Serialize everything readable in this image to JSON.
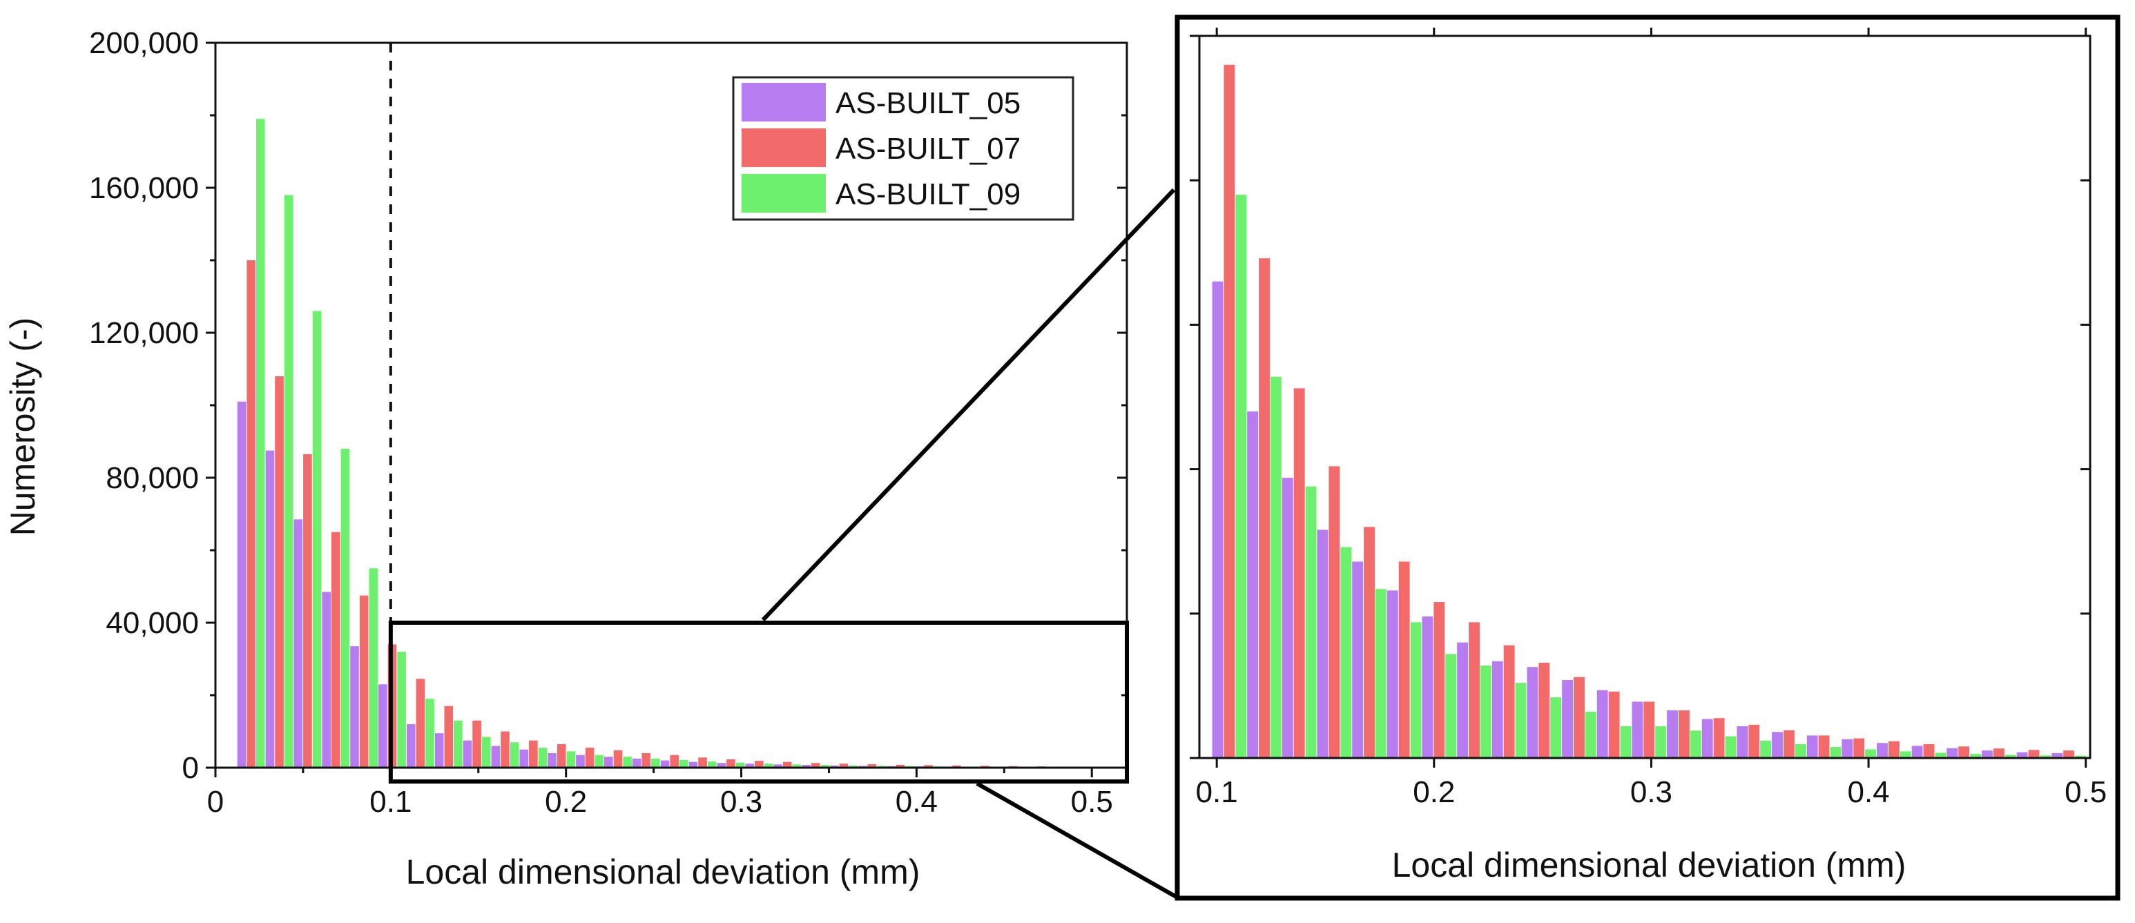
{
  "chart_data": [
    {
      "panel": "main",
      "type": "bar",
      "xlabel": "Local dimensional deviation (mm)",
      "ylabel": "Numerosity (-)",
      "xlim": [
        0,
        0.52
      ],
      "ylim": [
        0,
        200000
      ],
      "xticks": [
        0,
        0.1,
        0.2,
        0.3,
        0.4,
        0.5
      ],
      "xtick_labels": [
        "0",
        "0.1",
        "0.2",
        "0.3",
        "0.4",
        "0.5"
      ],
      "yticks": [
        0,
        40000,
        80000,
        120000,
        160000,
        200000
      ],
      "ytick_labels": [
        "0",
        "40,000",
        "80,000",
        "120,000",
        "160,000",
        "200,000"
      ],
      "threshold_line_x": 0.1,
      "bin_width": 0.0161,
      "bin_start": 0.0125,
      "series": [
        {
          "name": "AS-BUILT_05",
          "color": "#b77cf0",
          "values": [
            101000,
            87500,
            68500,
            48500,
            33500,
            23000,
            12000,
            9500,
            7500,
            6000,
            5000,
            4000,
            3500,
            3000,
            2500,
            2000,
            1600,
            1300,
            1100,
            900,
            750,
            600,
            500,
            420,
            350,
            300,
            250,
            200,
            170,
            150,
            130,
            110
          ]
        },
        {
          "name": "AS-BUILT_07",
          "color": "#f26a6a",
          "values": [
            140000,
            108000,
            86500,
            65000,
            47500,
            34000,
            24500,
            17000,
            13000,
            10000,
            7500,
            6500,
            5500,
            4800,
            4000,
            3500,
            2800,
            2300,
            1900,
            1600,
            1300,
            1100,
            950,
            800,
            700,
            600,
            500,
            420,
            350,
            300,
            260,
            220
          ]
        },
        {
          "name": "AS-BUILT_09",
          "color": "#6df06d",
          "values": [
            179000,
            158000,
            126000,
            88000,
            55000,
            32000,
            19000,
            13000,
            8500,
            7000,
            5500,
            4500,
            3500,
            3000,
            2500,
            2100,
            1700,
            1400,
            1100,
            900,
            750,
            600,
            500,
            420,
            350,
            300,
            250,
            200,
            170,
            150,
            130,
            110
          ]
        }
      ]
    },
    {
      "panel": "zoom-inset",
      "type": "bar",
      "xlabel": "Local dimensional deviation (mm)",
      "xlim": [
        0.092,
        0.502
      ],
      "ylim": [
        0,
        25000
      ],
      "xticks": [
        0.1,
        0.2,
        0.3,
        0.4,
        0.5
      ],
      "xtick_labels": [
        "0.1",
        "0.2",
        "0.3",
        "0.4",
        "0.5"
      ],
      "yticks": [
        0,
        5000,
        10000,
        15000,
        20000,
        25000
      ],
      "bin_width": 0.0161,
      "bin_start": 0.0979,
      "series": [
        {
          "name": "AS-BUILT_05",
          "color": "#b77cf0",
          "values": [
            16500,
            12000,
            9700,
            7900,
            6800,
            5800,
            4900,
            4000,
            3350,
            3150,
            2700,
            2350,
            1950,
            1650,
            1350,
            1100,
            900,
            780,
            650,
            520,
            420,
            340,
            260,
            200,
            170,
            130
          ]
        },
        {
          "name": "AS-BUILT_07",
          "color": "#f26a6a",
          "values": [
            24000,
            17300,
            12800,
            10100,
            8000,
            6800,
            5400,
            4700,
            3900,
            3300,
            2800,
            2300,
            1950,
            1650,
            1380,
            1150,
            960,
            780,
            680,
            580,
            480,
            400,
            330,
            280,
            260,
            230
          ]
        },
        {
          "name": "AS-BUILT_09",
          "color": "#6df06d",
          "values": [
            19500,
            13200,
            9400,
            7300,
            5850,
            4700,
            3600,
            3200,
            2600,
            2100,
            1600,
            1100,
            1100,
            950,
            750,
            600,
            480,
            380,
            300,
            230,
            180,
            140,
            110,
            90,
            80,
            70
          ]
        }
      ]
    }
  ],
  "legend": {
    "entries": [
      "AS-BUILT_05",
      "AS-BUILT_07",
      "AS-BUILT_09"
    ],
    "placement": "top-right"
  }
}
